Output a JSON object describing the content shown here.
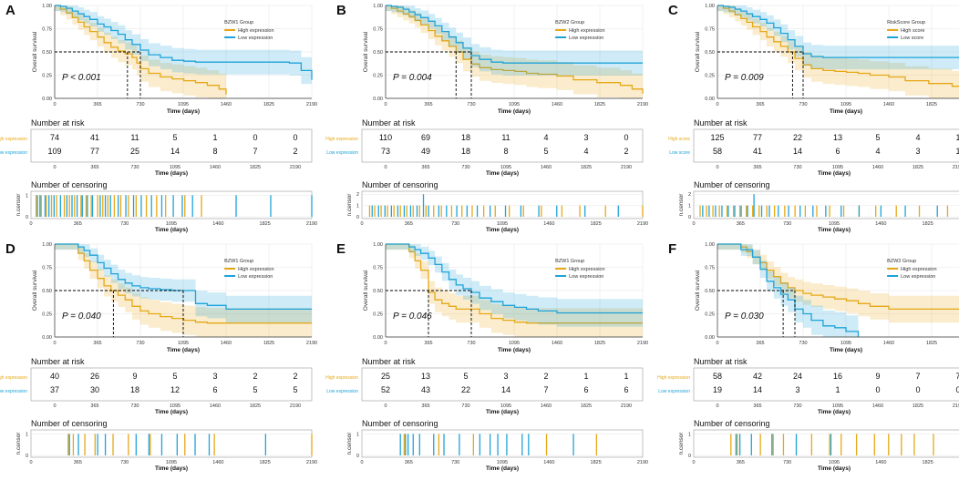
{
  "colors": {
    "high": "#E6A817",
    "low": "#1FA3D9",
    "grid": "#e6e6e6",
    "axis": "#333333"
  },
  "chart_data": [
    {
      "panel": "A",
      "type": "line",
      "legend_title": "BZW1 Group",
      "series": [
        {
          "name": "High expression",
          "x": [
            0,
            50,
            100,
            150,
            200,
            250,
            300,
            365,
            420,
            480,
            540,
            600,
            660,
            700,
            730,
            800,
            900,
            1000,
            1100,
            1200,
            1300,
            1400,
            1460
          ],
          "y": [
            1.0,
            0.96,
            0.92,
            0.87,
            0.82,
            0.77,
            0.72,
            0.66,
            0.6,
            0.55,
            0.51,
            0.48,
            0.44,
            0.38,
            0.32,
            0.27,
            0.23,
            0.21,
            0.19,
            0.17,
            0.14,
            0.1,
            0.04
          ]
        },
        {
          "name": "Low expression",
          "x": [
            0,
            50,
            100,
            150,
            200,
            250,
            300,
            365,
            420,
            480,
            540,
            600,
            660,
            730,
            800,
            900,
            1000,
            1100,
            1200,
            1400,
            1600,
            1800,
            2000,
            2100,
            2190
          ],
          "y": [
            1.0,
            0.99,
            0.97,
            0.94,
            0.91,
            0.88,
            0.85,
            0.8,
            0.77,
            0.73,
            0.69,
            0.63,
            0.58,
            0.52,
            0.47,
            0.44,
            0.41,
            0.4,
            0.39,
            0.39,
            0.39,
            0.39,
            0.38,
            0.3,
            0.2
          ]
        }
      ],
      "pvalue": "P < 0.001",
      "median_x": [
        620,
        730
      ],
      "xlabel": "Time (days)",
      "ylabel": "Overall survival",
      "xticks": [
        "0",
        "365",
        "730",
        "1095",
        "1460",
        "1825",
        "2190"
      ],
      "yticks": [
        "0.00",
        "0.25",
        "0.50",
        "0.75",
        "1.00"
      ],
      "risk_title": "Number at risk",
      "risk_labels": [
        "High expression",
        "Low expression"
      ],
      "risk_high": [
        "74",
        "41",
        "11",
        "5",
        "1",
        "0",
        "0"
      ],
      "risk_low": [
        "109",
        "77",
        "25",
        "14",
        "8",
        "7",
        "2"
      ],
      "cens_title": "Number of censoring",
      "cens_ylabel": "n.censor",
      "cens_max": 1,
      "cens_yticks": [
        "0",
        "1"
      ],
      "cens_high": [
        40,
        80,
        120,
        160,
        200,
        260,
        300,
        340,
        390,
        430,
        470,
        520,
        560,
        600,
        650,
        700,
        760,
        820,
        900,
        980,
        1050,
        1200,
        1330
      ],
      "cens_low": [
        50,
        70,
        110,
        140,
        180,
        230,
        280,
        320,
        360,
        400,
        440,
        480,
        540,
        580,
        620,
        680,
        740,
        800,
        860,
        940,
        1020,
        1110,
        1180,
        1260,
        1600,
        1870,
        2190
      ]
    },
    {
      "panel": "B",
      "type": "line",
      "legend_title": "BZW2 Group",
      "series": [
        {
          "name": "High expression",
          "x": [
            0,
            50,
            100,
            150,
            200,
            250,
            300,
            365,
            420,
            480,
            540,
            600,
            660,
            730,
            800,
            900,
            1000,
            1100,
            1200,
            1300,
            1460,
            1600,
            1800,
            2000,
            2100,
            2190
          ],
          "y": [
            1.0,
            0.97,
            0.94,
            0.91,
            0.88,
            0.84,
            0.79,
            0.73,
            0.67,
            0.62,
            0.56,
            0.5,
            0.42,
            0.37,
            0.33,
            0.31,
            0.3,
            0.29,
            0.27,
            0.26,
            0.24,
            0.2,
            0.17,
            0.14,
            0.1,
            0.05
          ]
        },
        {
          "name": "Low expression",
          "x": [
            0,
            50,
            100,
            150,
            200,
            250,
            300,
            365,
            420,
            480,
            540,
            600,
            660,
            730,
            800,
            900,
            1000,
            1100,
            1300,
            1600,
            2000,
            2190
          ],
          "y": [
            1.0,
            0.99,
            0.98,
            0.96,
            0.93,
            0.9,
            0.87,
            0.83,
            0.78,
            0.72,
            0.66,
            0.6,
            0.54,
            0.46,
            0.42,
            0.39,
            0.38,
            0.38,
            0.38,
            0.38,
            0.38,
            0.38
          ]
        }
      ],
      "pvalue": "P = 0.004",
      "median_x": [
        600,
        730
      ],
      "xlabel": "Time (days)",
      "ylabel": "Overall survival",
      "xticks": [
        "0",
        "365",
        "730",
        "1095",
        "1460",
        "1825",
        "2190"
      ],
      "yticks": [
        "0.00",
        "0.25",
        "0.50",
        "0.75",
        "1.00"
      ],
      "risk_title": "Number at risk",
      "risk_labels": [
        "High expression",
        "Low expression"
      ],
      "risk_high": [
        "110",
        "69",
        "18",
        "11",
        "4",
        "3",
        "0"
      ],
      "risk_low": [
        "73",
        "49",
        "18",
        "8",
        "5",
        "4",
        "2"
      ],
      "cens_title": "Number of censoring",
      "cens_ylabel": "n.censor",
      "cens_max": 2,
      "cens_yticks": [
        "0",
        "1",
        "2"
      ],
      "cens_high": [
        60,
        100,
        150,
        200,
        250,
        300,
        350,
        400,
        450,
        500,
        560,
        620,
        700,
        780,
        860,
        950,
        1040,
        1150,
        1260,
        1400,
        1560,
        1700,
        1900,
        2190
      ],
      "cens_low": [
        80,
        130,
        180,
        230,
        280,
        330,
        380,
        430,
        480,
        520,
        600,
        660,
        740,
        820,
        900,
        1000,
        1120,
        1240,
        1380,
        1520,
        1740,
        2000
      ]
    },
    {
      "panel": "C",
      "type": "line",
      "legend_title": "RiskScore Group",
      "series": [
        {
          "name": "High score",
          "x": [
            0,
            50,
            100,
            150,
            200,
            250,
            300,
            365,
            420,
            480,
            540,
            600,
            660,
            730,
            800,
            900,
            1000,
            1100,
            1200,
            1300,
            1460,
            1600,
            1800,
            2000,
            2100,
            2190
          ],
          "y": [
            1.0,
            0.97,
            0.94,
            0.9,
            0.86,
            0.82,
            0.77,
            0.72,
            0.66,
            0.61,
            0.56,
            0.5,
            0.43,
            0.36,
            0.32,
            0.3,
            0.29,
            0.28,
            0.27,
            0.25,
            0.23,
            0.19,
            0.16,
            0.13,
            0.09,
            0.05
          ]
        },
        {
          "name": "Low score",
          "x": [
            0,
            50,
            100,
            150,
            200,
            250,
            300,
            365,
            420,
            480,
            540,
            600,
            660,
            730,
            800,
            900,
            1000,
            1200,
            1500,
            1800,
            2000,
            2190
          ],
          "y": [
            1.0,
            0.99,
            0.98,
            0.96,
            0.94,
            0.91,
            0.88,
            0.85,
            0.81,
            0.76,
            0.7,
            0.63,
            0.56,
            0.48,
            0.45,
            0.44,
            0.44,
            0.44,
            0.44,
            0.44,
            0.44,
            0.44
          ]
        }
      ],
      "pvalue": "P = 0.009",
      "median_x": [
        640,
        730
      ],
      "xlabel": "Time (days)",
      "ylabel": "Overall survival",
      "xticks": [
        "0",
        "365",
        "730",
        "1095",
        "1460",
        "1825",
        "2190"
      ],
      "yticks": [
        "0.00",
        "0.25",
        "0.50",
        "0.75",
        "1.00"
      ],
      "risk_title": "Number at risk",
      "risk_labels": [
        "High score",
        "Low score"
      ],
      "risk_high": [
        "125",
        "77",
        "22",
        "13",
        "5",
        "4",
        "1"
      ],
      "risk_low": [
        "58",
        "41",
        "14",
        "6",
        "4",
        "3",
        "1"
      ],
      "cens_title": "Number of censoring",
      "cens_ylabel": "n.censor",
      "cens_max": 2,
      "cens_yticks": [
        "0",
        "1",
        "2"
      ],
      "cens_high": [
        50,
        100,
        150,
        200,
        260,
        310,
        360,
        410,
        460,
        510,
        570,
        630,
        710,
        790,
        870,
        960,
        1060,
        1170,
        1290,
        1420,
        1580,
        1760,
        1980,
        2190
      ],
      "cens_low": [
        70,
        120,
        170,
        220,
        270,
        320,
        370,
        420,
        470,
        530,
        590,
        660,
        740,
        830,
        930,
        1030,
        1150,
        1290,
        1460,
        1650,
        1900
      ]
    },
    {
      "panel": "D",
      "type": "line",
      "legend_title": "BZW1 Group",
      "series": [
        {
          "name": "High expression",
          "x": [
            0,
            100,
            200,
            250,
            300,
            365,
            420,
            480,
            540,
            600,
            660,
            730,
            800,
            900,
            1000,
            1100,
            1200,
            1300,
            1460,
            2190
          ],
          "y": [
            1.0,
            1.0,
            0.9,
            0.82,
            0.72,
            0.63,
            0.55,
            0.5,
            0.45,
            0.4,
            0.33,
            0.28,
            0.25,
            0.22,
            0.2,
            0.18,
            0.16,
            0.15,
            0.15,
            0.15
          ]
        },
        {
          "name": "Low expression",
          "x": [
            0,
            100,
            200,
            250,
            300,
            365,
            420,
            480,
            540,
            600,
            660,
            730,
            800,
            900,
            1000,
            1095,
            1200,
            1300,
            1460,
            1825,
            2190
          ],
          "y": [
            1.0,
            1.0,
            0.97,
            0.93,
            0.88,
            0.8,
            0.74,
            0.68,
            0.62,
            0.58,
            0.55,
            0.53,
            0.52,
            0.51,
            0.5,
            0.5,
            0.36,
            0.34,
            0.3,
            0.3,
            0.3
          ]
        }
      ],
      "pvalue": "P = 0.040",
      "median_x": [
        500,
        1095
      ],
      "xlabel": "Time (days)",
      "ylabel": "Overall survival",
      "xticks": [
        "0",
        "365",
        "730",
        "1095",
        "1460",
        "1825",
        "2190"
      ],
      "yticks": [
        "0.00",
        "0.25",
        "0.50",
        "0.75",
        "1.00"
      ],
      "risk_title": "Number at risk",
      "risk_labels": [
        "High expression",
        "Low expression"
      ],
      "risk_high": [
        "40",
        "26",
        "9",
        "5",
        "3",
        "2",
        "2"
      ],
      "risk_low": [
        "37",
        "30",
        "18",
        "12",
        "6",
        "5",
        "5"
      ],
      "cens_title": "Number of censoring",
      "cens_ylabel": "n.censor",
      "cens_max": 1,
      "cens_yticks": [
        "0",
        "1"
      ],
      "cens_high": [
        290,
        330,
        420,
        500,
        640,
        760,
        930,
        1200,
        1430,
        2190
      ],
      "cens_low": [
        300,
        370,
        520,
        580,
        820,
        920,
        1020,
        1140,
        1280,
        1390,
        1830
      ]
    },
    {
      "panel": "E",
      "type": "line",
      "legend_title": "BZW1 Group",
      "series": [
        {
          "name": "High expression",
          "x": [
            0,
            100,
            200,
            250,
            300,
            365,
            420,
            480,
            540,
            600,
            730,
            800,
            900,
            1000,
            1100,
            1200,
            1460,
            1825,
            2190
          ],
          "y": [
            1.0,
            1.0,
            0.92,
            0.82,
            0.72,
            0.48,
            0.4,
            0.36,
            0.33,
            0.3,
            0.3,
            0.25,
            0.2,
            0.18,
            0.16,
            0.15,
            0.15,
            0.15,
            0.15
          ]
        },
        {
          "name": "Low expression",
          "x": [
            0,
            100,
            200,
            250,
            300,
            365,
            420,
            480,
            540,
            600,
            660,
            730,
            800,
            900,
            1000,
            1100,
            1200,
            1300,
            1460,
            1825,
            2190
          ],
          "y": [
            1.0,
            1.0,
            0.97,
            0.94,
            0.9,
            0.85,
            0.78,
            0.7,
            0.62,
            0.56,
            0.52,
            0.48,
            0.42,
            0.38,
            0.34,
            0.32,
            0.3,
            0.28,
            0.26,
            0.26,
            0.26
          ]
        }
      ],
      "pvalue": "P = 0.046",
      "median_x": [
        365,
        730
      ],
      "xlabel": "Time (days)",
      "ylabel": "Overall survival",
      "xticks": [
        "0",
        "365",
        "730",
        "1095",
        "1460",
        "1825",
        "2190"
      ],
      "yticks": [
        "0.00",
        "0.25",
        "0.50",
        "0.75",
        "1.00"
      ],
      "risk_title": "Number at risk",
      "risk_labels": [
        "High expression",
        "Low expression"
      ],
      "risk_high": [
        "25",
        "13",
        "5",
        "3",
        "2",
        "1",
        "1"
      ],
      "risk_low": [
        "52",
        "43",
        "22",
        "14",
        "7",
        "6",
        "6"
      ],
      "cens_title": "Number of censoring",
      "cens_ylabel": "n.censor",
      "cens_max": 1,
      "cens_yticks": [
        "0",
        "1"
      ],
      "cens_high": [
        330,
        600,
        870,
        1440,
        1830
      ],
      "cens_low": [
        300,
        340,
        360,
        400,
        450,
        560,
        640,
        760,
        920,
        1000,
        1060,
        1130,
        1250,
        1300,
        1650
      ]
    },
    {
      "panel": "F",
      "type": "line",
      "legend_title": "BZW2 Group",
      "series": [
        {
          "name": "High expression",
          "x": [
            0,
            100,
            200,
            250,
            300,
            365,
            420,
            480,
            540,
            600,
            660,
            730,
            800,
            900,
            1000,
            1100,
            1200,
            1300,
            1460,
            1825,
            2190
          ],
          "y": [
            1.0,
            1.0,
            0.97,
            0.92,
            0.86,
            0.8,
            0.72,
            0.65,
            0.58,
            0.53,
            0.5,
            0.47,
            0.45,
            0.43,
            0.41,
            0.39,
            0.36,
            0.33,
            0.3,
            0.3,
            0.3
          ]
        },
        {
          "name": "Low expression",
          "x": [
            0,
            100,
            200,
            300,
            365,
            420,
            480,
            540,
            600,
            660,
            730,
            800,
            900,
            1000,
            1095,
            1200
          ],
          "y": [
            1.0,
            1.0,
            0.94,
            0.86,
            0.73,
            0.6,
            0.53,
            0.46,
            0.4,
            0.3,
            0.25,
            0.18,
            0.12,
            0.1,
            0.06,
            0.0
          ]
        }
      ],
      "pvalue": "P = 0.030",
      "median_x": [
        560,
        660
      ],
      "xlabel": "Time (days)",
      "ylabel": "Overall survival",
      "xticks": [
        "0",
        "365",
        "730",
        "1095",
        "1460",
        "1825",
        "2190"
      ],
      "yticks": [
        "0.00",
        "0.25",
        "0.50",
        "0.75",
        "1.00"
      ],
      "risk_title": "Number at risk",
      "risk_labels": [
        "High expression",
        "Low expression"
      ],
      "risk_high": [
        "58",
        "42",
        "24",
        "16",
        "9",
        "7",
        "7"
      ],
      "risk_low": [
        "19",
        "14",
        "3",
        "1",
        "0",
        "0",
        "0"
      ],
      "cens_title": "Number of censoring",
      "cens_ylabel": "n.censor",
      "cens_max": 1,
      "cens_yticks": [
        "0",
        "1"
      ],
      "cens_high": [
        290,
        340,
        520,
        620,
        700,
        920,
        1060,
        1150,
        1270,
        1410,
        1520,
        1620,
        1720,
        1870,
        2190
      ],
      "cens_low": [
        330,
        360,
        450,
        610,
        800,
        1070
      ]
    }
  ]
}
